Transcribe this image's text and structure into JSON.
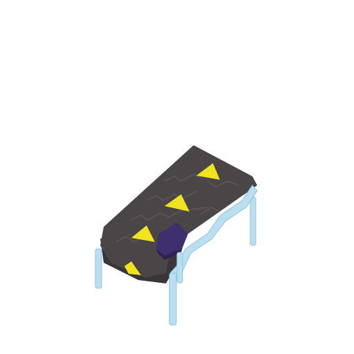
{
  "scene": {
    "subject": "conveyor-belt",
    "colors": {
      "background": "#ffffff",
      "belt": "#4a4546",
      "belt_dark": "#3a3536",
      "belt_seam": "#5e5859",
      "arrow": "#f2e31f",
      "arrow_shadow": "#c9ba12",
      "frame": "#b9dff0",
      "frame_edge": "#8fc3dd",
      "cargo": "#3f2f6e",
      "cargo_dark": "#2e2252"
    }
  }
}
